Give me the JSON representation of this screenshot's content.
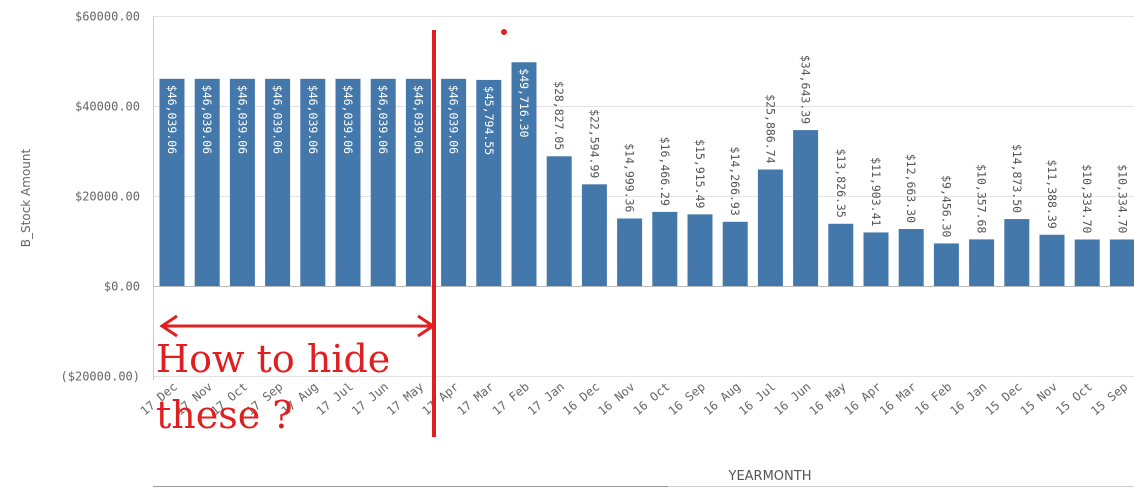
{
  "chart_data": {
    "type": "bar",
    "ylabel": "B_Stock Amount",
    "xlabel": "YEARMONTH",
    "ylim": [
      -20000,
      60000
    ],
    "yticks": [
      -20000,
      0,
      20000,
      40000,
      60000
    ],
    "ytick_labels": [
      "($20000.00)",
      "$0.00",
      "$20000.00",
      "$40000.00",
      "$60000.00"
    ],
    "grid": true,
    "bar_color": "#4477aa",
    "categories": [
      "17 Dec",
      "17 Nov",
      "17 Oct",
      "17 Sep",
      "17 Aug",
      "17 Jul",
      "17 Jun",
      "17 May",
      "17 Apr",
      "17 Mar",
      "17 Feb",
      "17 Jan",
      "16 Dec",
      "16 Nov",
      "16 Oct",
      "16 Sep",
      "16 Aug",
      "16 Jul",
      "16 Jun",
      "16 May",
      "16 Apr",
      "16 Mar",
      "16 Feb",
      "16 Jan",
      "15 Dec",
      "15 Nov",
      "15 Oct",
      "15 Sep"
    ],
    "values": [
      46039.06,
      46039.06,
      46039.06,
      46039.06,
      46039.06,
      46039.06,
      46039.06,
      46039.06,
      46039.06,
      45794.55,
      49716.3,
      28827.05,
      22594.99,
      14999.36,
      16466.29,
      15915.49,
      14266.93,
      25886.74,
      34643.39,
      13826.35,
      11903.41,
      12663.3,
      9456.3,
      10357.68,
      14873.5,
      11388.39,
      10334.7,
      10334.7
    ],
    "value_labels": [
      "$46,039.06",
      "$46,039.06",
      "$46,039.06",
      "$46,039.06",
      "$46,039.06",
      "$46,039.06",
      "$46,039.06",
      "$46,039.06",
      "$46,039.06",
      "$45,794.55",
      "$49,716.30",
      "$28,827.05",
      "$22,594.99",
      "$14,999.36",
      "$16,466.29",
      "$15,915.49",
      "$14,266.93",
      "$25,886.74",
      "$34,643.39",
      "$13,826.35",
      "$11,903.41",
      "$12,663.30",
      "$9,456.30",
      "$10,357.68",
      "$14,873.50",
      "$11,388.39",
      "$10,334.70",
      "$10,334.70"
    ]
  },
  "annotation": {
    "line1": "How to hide",
    "line2": "these ?",
    "color": "#e02020"
  }
}
